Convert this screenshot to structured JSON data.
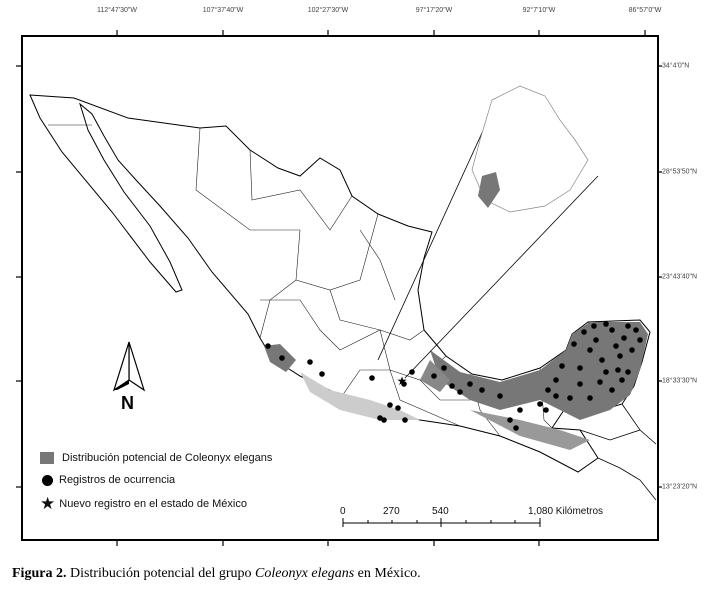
{
  "map": {
    "longitude_labels": [
      "112°47'30\"W",
      "107°37'40\"W",
      "102°27'30\"W",
      "97°17'20\"W",
      "92°7'10\"W",
      "86°57'0\"W"
    ],
    "latitude_labels": [
      "34°4'0\"N",
      "28°53'50\"N",
      "23°43'40\"N",
      "18°33'30\"N",
      "13°23'20\"N"
    ],
    "north_arrow_label": "N",
    "colors": {
      "distribution": "#777777",
      "records": "#000000",
      "frame": "#000000"
    }
  },
  "legend": {
    "items": [
      {
        "symbol": "gray-square",
        "label": "Distribución potencial de Coleonyx elegans"
      },
      {
        "symbol": "black-circle",
        "label": "Registros de ocurrencia"
      },
      {
        "symbol": "black-star",
        "label": "Nuevo registro en el estado de México"
      }
    ]
  },
  "scale_bar": {
    "labels": [
      "0",
      "270",
      "540",
      "1,080 Kilómetros"
    ]
  },
  "caption": {
    "prefix": "Figura 2.",
    "text_before": " Distribución potencial del grupo ",
    "species": "Coleonyx elegans",
    "text_after": " en México."
  }
}
